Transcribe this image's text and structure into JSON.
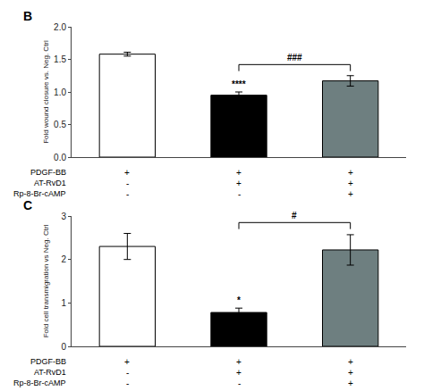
{
  "chart_data": [
    {
      "type": "bar",
      "title": "B",
      "ylabel": "Fold wound closure vs. Neg. Ctrl",
      "categories": [
        null,
        null,
        null
      ],
      "values": [
        1.58,
        0.95,
        1.17
      ],
      "errors": [
        0.03,
        0.05,
        0.08
      ],
      "colors": [
        "#ffffff",
        "#000000",
        "#6e7f80"
      ],
      "ylim": [
        0,
        2
      ],
      "yticks": [
        {
          "value": 0,
          "label": "0.0"
        },
        0.5,
        {
          "value": 1,
          "label": "1.0"
        },
        1.5,
        {
          "value": 2,
          "label": "2.0"
        }
      ],
      "grid": false,
      "tick_labels": "y",
      "annotations": [
        {
          "text": "****",
          "category": 1
        },
        {
          "text": "###",
          "bracket": [
            1,
            2
          ],
          "y_base": 1.32,
          "y_top": 1.42
        }
      ],
      "condition_rows": [
        {
          "name": "PDGF-BB",
          "values": [
            "+",
            "+",
            "+"
          ]
        },
        {
          "name": "AT-RvD1",
          "values": [
            "-",
            "+",
            "+"
          ]
        },
        {
          "name": "Rp-8-Br-cAMP",
          "values": [
            "-",
            "-",
            "+"
          ]
        }
      ]
    },
    {
      "type": "bar",
      "title": "C",
      "ylabel": "Fold cell transmigration vs Neg. Ctrl",
      "categories": [
        null,
        null,
        null
      ],
      "values": [
        2.3,
        0.78,
        2.22
      ],
      "errors": [
        0.3,
        0.1,
        0.35
      ],
      "colors": [
        "#ffffff",
        "#000000",
        "#6e7f80"
      ],
      "ylim": [
        0,
        3
      ],
      "yticks": [
        0,
        1,
        2,
        3
      ],
      "grid": false,
      "tick_labels": "y",
      "annotations": [
        {
          "text": "*",
          "category": 1
        },
        {
          "text": "#",
          "bracket": [
            1,
            2
          ],
          "y_base": 2.7,
          "y_top": 2.85
        }
      ],
      "condition_rows": [
        {
          "name": "PDGF-BB",
          "values": [
            "+",
            "+",
            "+"
          ]
        },
        {
          "name": "AT-RvD1",
          "values": [
            "-",
            "+",
            "+"
          ]
        },
        {
          "name": "Rp-8-Br-cAMP",
          "values": [
            "-",
            "-",
            "+"
          ]
        }
      ]
    }
  ]
}
